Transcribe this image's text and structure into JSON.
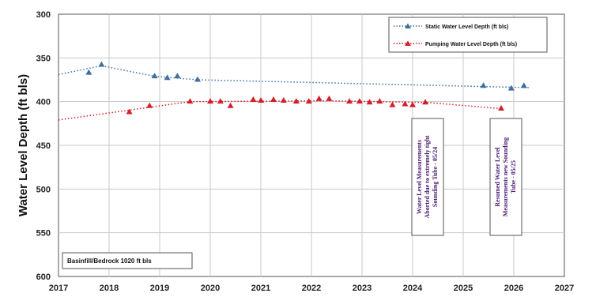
{
  "chart_data": {
    "type": "line",
    "title": "",
    "xlabel": "",
    "ylabel": "Water Level Depth (ft bls)",
    "xlim": [
      2017,
      2027
    ],
    "ylim": [
      300,
      600
    ],
    "y_inverted": true,
    "grid": true,
    "legend_position": "top-right",
    "x_ticks": [
      "2017",
      "2018",
      "2019",
      "2020",
      "2021",
      "2022",
      "2023",
      "2024",
      "2025",
      "2026",
      "2027"
    ],
    "y_ticks": [
      "300",
      "350",
      "400",
      "450",
      "500",
      "550",
      "600"
    ],
    "series": [
      {
        "name": "Static Water Level Depth (ft bls)",
        "color": "#3e6f9e",
        "marker": "triangle",
        "line_style": "dotted",
        "points": [
          [
            2017.6,
            367
          ],
          [
            2017.85,
            358
          ],
          [
            2018.9,
            371
          ],
          [
            2019.15,
            373
          ],
          [
            2019.35,
            371
          ],
          [
            2019.75,
            375
          ],
          [
            2025.4,
            382
          ],
          [
            2025.95,
            385
          ],
          [
            2026.2,
            382
          ]
        ],
        "trend": [
          [
            2017.0,
            369
          ],
          [
            2017.85,
            359
          ],
          [
            2018.9,
            371
          ],
          [
            2019.75,
            375
          ],
          [
            2026.3,
            384
          ]
        ]
      },
      {
        "name": "Pumping Water Level Depth (ft bls)",
        "color": "#d41f2a",
        "marker": "triangle",
        "line_style": "dotted",
        "points": [
          [
            2018.4,
            412
          ],
          [
            2018.8,
            405
          ],
          [
            2019.6,
            400
          ],
          [
            2020.0,
            400
          ],
          [
            2020.2,
            400
          ],
          [
            2020.4,
            405
          ],
          [
            2020.85,
            398
          ],
          [
            2021.0,
            399
          ],
          [
            2021.25,
            398
          ],
          [
            2021.45,
            399
          ],
          [
            2021.7,
            400
          ],
          [
            2021.95,
            400
          ],
          [
            2022.15,
            397
          ],
          [
            2022.35,
            397
          ],
          [
            2022.75,
            400
          ],
          [
            2022.95,
            400
          ],
          [
            2023.15,
            401
          ],
          [
            2023.35,
            400
          ],
          [
            2023.6,
            404
          ],
          [
            2023.85,
            403
          ],
          [
            2024.0,
            404
          ],
          [
            2024.25,
            401
          ],
          [
            2025.75,
            408
          ]
        ],
        "trend": [
          [
            2017.0,
            421
          ],
          [
            2019.6,
            400
          ],
          [
            2022.35,
            399
          ],
          [
            2024.3,
            401
          ],
          [
            2025.75,
            408
          ]
        ]
      }
    ],
    "annotations": [
      {
        "lines": [
          "Water Level Measurements",
          "Aborted due to extremely tight",
          "Sounding Tube - 05/24"
        ]
      },
      {
        "lines": [
          "Resumed Water Level",
          "Measurements new Sounding",
          "Tube - 05/25"
        ]
      }
    ],
    "label_box": "Basinfill/Bedrock 1020 ft bls"
  },
  "colors": {
    "static": "#3e6f9e",
    "pumping": "#d41f2a",
    "annotation_text": "#4b1b73"
  }
}
